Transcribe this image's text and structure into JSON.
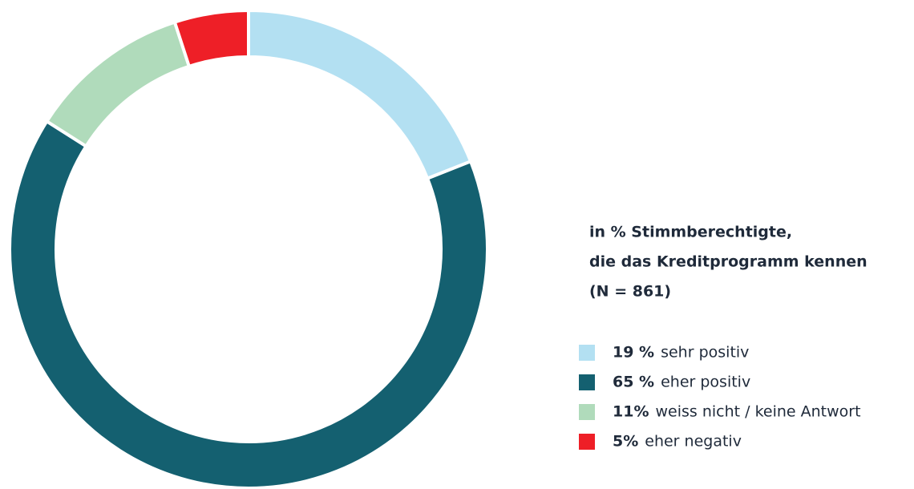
{
  "chart_data": {
    "type": "donut",
    "title": [
      "in % Stimmberechtigte,",
      "die das Kreditprogramm kennen",
      "(N = 861)"
    ],
    "categories": [
      "sehr positiv",
      "eher positiv",
      "weiss nicht / keine Antwort",
      "eher negativ"
    ],
    "values": [
      19,
      65,
      11,
      5
    ],
    "value_labels": [
      "19 %",
      "65 %",
      "11%",
      "5%"
    ],
    "colors": [
      "#b3e0f2",
      "#146070",
      "#b0dbbb",
      "#ee1f27"
    ]
  }
}
